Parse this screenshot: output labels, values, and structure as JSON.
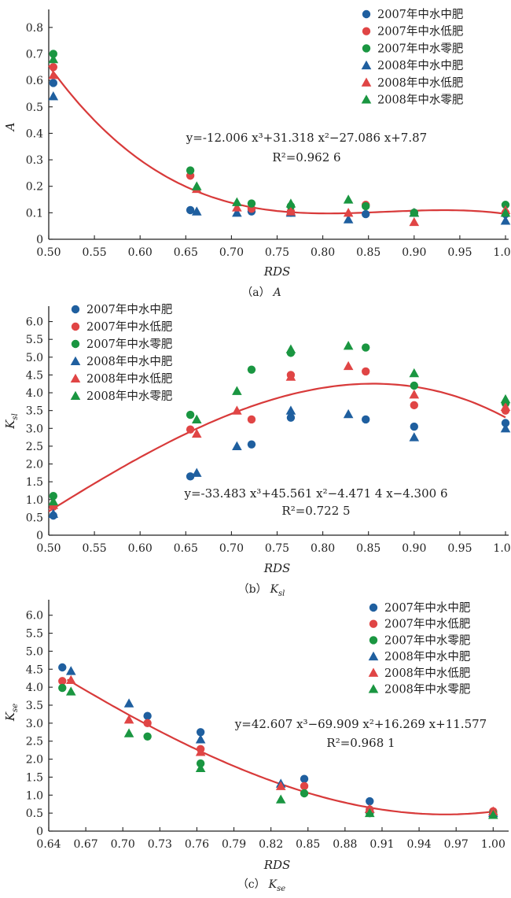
{
  "colors": {
    "blue": "#1f5f9f",
    "red": "#e04545",
    "green": "#1a9641",
    "fit": "#d83a3a"
  },
  "legend": [
    {
      "label": "2007年中水中肥",
      "color": "#1f5f9f",
      "marker": "circle"
    },
    {
      "label": "2007年中水低肥",
      "color": "#e04545",
      "marker": "circle"
    },
    {
      "label": "2007年中水零肥",
      "color": "#1a9641",
      "marker": "circle"
    },
    {
      "label": "2008年中水中肥",
      "color": "#1f5f9f",
      "marker": "triangle"
    },
    {
      "label": "2008年中水低肥",
      "color": "#e04545",
      "marker": "triangle"
    },
    {
      "label": "2008年中水零肥",
      "color": "#1a9641",
      "marker": "triangle"
    }
  ],
  "chart_data": [
    {
      "type": "scatter",
      "panel": "a",
      "caption_prefix": "（a）",
      "caption_var": "A",
      "caption_sub": "",
      "xlabel": "RDS",
      "ylabel_main": "A",
      "ylabel_sub": "",
      "xlim": [
        0.5,
        1.0
      ],
      "ylim": [
        0,
        0.85
      ],
      "xticks": [
        "0.50",
        "0.55",
        "0.60",
        "0.65",
        "0.70",
        "0.75",
        "0.80",
        "0.85",
        "0.90",
        "0.95",
        "1.00"
      ],
      "yticks": [
        "0",
        "0.1",
        "0.2",
        "0.3",
        "0.4",
        "0.5",
        "0.6",
        "0.7",
        "0.8"
      ],
      "grid": false,
      "legend_position": "top-right",
      "equation": "y=-12.006 x³+31.318 x²−27.086 x+7.87",
      "r2": "R²=0.962 6",
      "fit": {
        "coeffs": [
          -12.006,
          31.318,
          -27.086,
          7.87
        ],
        "range": [
          0.5,
          1.0
        ]
      },
      "series": [
        {
          "name": "2007年中水中肥",
          "points": [
            [
              0.505,
              0.59
            ],
            [
              0.655,
              0.11
            ],
            [
              0.722,
              0.105
            ],
            [
              0.765,
              0.1
            ],
            [
              0.847,
              0.095
            ],
            [
              0.9,
              0.1
            ],
            [
              1.0,
              0.095
            ]
          ]
        },
        {
          "name": "2007年中水低肥",
          "points": [
            [
              0.505,
              0.65
            ],
            [
              0.655,
              0.24
            ],
            [
              0.722,
              0.115
            ],
            [
              0.765,
              0.105
            ],
            [
              0.847,
              0.13
            ],
            [
              0.9,
              0.1
            ],
            [
              1.0,
              0.1
            ]
          ]
        },
        {
          "name": "2007年中水零肥",
          "points": [
            [
              0.505,
              0.7
            ],
            [
              0.655,
              0.26
            ],
            [
              0.722,
              0.135
            ],
            [
              0.765,
              0.125
            ],
            [
              0.847,
              0.125
            ],
            [
              0.9,
              0.1
            ],
            [
              1.0,
              0.13
            ]
          ]
        },
        {
          "name": "2008年中水中肥",
          "points": [
            [
              0.505,
              0.54
            ],
            [
              0.662,
              0.105
            ],
            [
              0.706,
              0.1
            ],
            [
              0.765,
              0.1
            ],
            [
              0.828,
              0.075
            ],
            [
              0.9,
              0.1
            ],
            [
              1.0,
              0.07
            ]
          ]
        },
        {
          "name": "2008年中水低肥",
          "points": [
            [
              0.505,
              0.62
            ],
            [
              0.662,
              0.19
            ],
            [
              0.706,
              0.12
            ],
            [
              0.765,
              0.105
            ],
            [
              0.828,
              0.1
            ],
            [
              0.9,
              0.065
            ],
            [
              1.0,
              0.11
            ]
          ]
        },
        {
          "name": "2008年中水零肥",
          "points": [
            [
              0.505,
              0.68
            ],
            [
              0.662,
              0.2
            ],
            [
              0.706,
              0.14
            ],
            [
              0.765,
              0.135
            ],
            [
              0.828,
              0.15
            ],
            [
              0.9,
              0.1
            ],
            [
              1.0,
              0.1
            ]
          ]
        }
      ]
    },
    {
      "type": "scatter",
      "panel": "b",
      "caption_prefix": "（b）",
      "caption_var": "K",
      "caption_sub": "sl",
      "xlabel": "RDS",
      "ylabel_main": "K",
      "ylabel_sub": "sl",
      "xlim": [
        0.5,
        1.0
      ],
      "ylim": [
        0,
        6.3
      ],
      "xticks": [
        "0.50",
        "0.55",
        "0.60",
        "0.65",
        "0.70",
        "0.75",
        "0.80",
        "0.85",
        "0.90",
        "0.95",
        "1.00"
      ],
      "yticks": [
        "0",
        "0.5",
        "1.0",
        "1.5",
        "2.0",
        "2.5",
        "3.0",
        "3.5",
        "4.0",
        "4.5",
        "5.0",
        "5.5",
        "6.0"
      ],
      "grid": false,
      "legend_position": "top-left",
      "equation": "y=-33.483 x³+45.561 x²−4.471 4 x−4.300 6",
      "r2": "R²=0.722 5",
      "fit": {
        "coeffs": [
          -33.483,
          45.561,
          -4.4714,
          -4.3006
        ],
        "range": [
          0.5,
          1.0
        ]
      },
      "series": [
        {
          "name": "2007年中水中肥",
          "points": [
            [
              0.505,
              0.55
            ],
            [
              0.655,
              1.65
            ],
            [
              0.722,
              2.55
            ],
            [
              0.765,
              3.3
            ],
            [
              0.847,
              3.25
            ],
            [
              0.9,
              3.05
            ],
            [
              1.0,
              3.15
            ]
          ]
        },
        {
          "name": "2007年中水低肥",
          "points": [
            [
              0.505,
              0.8
            ],
            [
              0.655,
              2.97
            ],
            [
              0.722,
              3.25
            ],
            [
              0.765,
              4.5
            ],
            [
              0.847,
              4.6
            ],
            [
              0.9,
              3.65
            ],
            [
              1.0,
              3.5
            ]
          ]
        },
        {
          "name": "2007年中水零肥",
          "points": [
            [
              0.505,
              1.1
            ],
            [
              0.655,
              3.38
            ],
            [
              0.722,
              4.65
            ],
            [
              0.765,
              5.12
            ],
            [
              0.847,
              5.27
            ],
            [
              0.9,
              4.2
            ],
            [
              1.0,
              3.7
            ]
          ]
        },
        {
          "name": "2008年中水中肥",
          "points": [
            [
              0.505,
              0.6
            ],
            [
              0.662,
              1.75
            ],
            [
              0.706,
              2.5
            ],
            [
              0.765,
              3.5
            ],
            [
              0.828,
              3.4
            ],
            [
              0.9,
              2.75
            ],
            [
              1.0,
              3.0
            ]
          ]
        },
        {
          "name": "2008年中水低肥",
          "points": [
            [
              0.505,
              0.85
            ],
            [
              0.662,
              2.85
            ],
            [
              0.706,
              3.5
            ],
            [
              0.765,
              4.45
            ],
            [
              0.828,
              4.75
            ],
            [
              0.9,
              3.95
            ],
            [
              1.0,
              3.6
            ]
          ]
        },
        {
          "name": "2008年中水零肥",
          "points": [
            [
              0.505,
              0.95
            ],
            [
              0.662,
              3.25
            ],
            [
              0.706,
              4.05
            ],
            [
              0.765,
              5.22
            ],
            [
              0.828,
              5.32
            ],
            [
              0.9,
              4.55
            ],
            [
              1.0,
              3.82
            ]
          ]
        }
      ]
    },
    {
      "type": "scatter",
      "panel": "c",
      "caption_prefix": "（c）",
      "caption_var": "K",
      "caption_sub": "se",
      "xlabel": "RDS",
      "ylabel_main": "K",
      "ylabel_sub": "se",
      "xlim": [
        0.64,
        1.01
      ],
      "ylim": [
        0,
        6.3
      ],
      "xticks": [
        "0.64",
        "0.67",
        "0.70",
        "0.73",
        "0.76",
        "0.79",
        "0.82",
        "0.85",
        "0.88",
        "0.91",
        "0.94",
        "0.97",
        "1.00"
      ],
      "yticks": [
        "0",
        "0.5",
        "1.0",
        "1.5",
        "2.0",
        "2.5",
        "3.0",
        "3.5",
        "4.0",
        "4.5",
        "5.0",
        "5.5",
        "6.0"
      ],
      "grid": false,
      "legend_position": "top-right",
      "equation": "y=42.607 x³−69.909 x²+16.269 x+11.577",
      "r2": "R²=0.968 1",
      "fit": {
        "coeffs": [
          42.607,
          -69.909,
          16.269,
          11.577
        ],
        "range": [
          0.655,
          1.0
        ]
      },
      "series": [
        {
          "name": "2007年中水中肥",
          "points": [
            [
              0.651,
              4.55
            ],
            [
              0.72,
              3.2
            ],
            [
              0.763,
              2.75
            ],
            [
              0.847,
              1.45
            ],
            [
              0.9,
              0.83
            ],
            [
              1.0,
              0.53
            ]
          ]
        },
        {
          "name": "2007年中水低肥",
          "points": [
            [
              0.651,
              4.17
            ],
            [
              0.72,
              3.0
            ],
            [
              0.763,
              2.28
            ],
            [
              0.847,
              1.25
            ],
            [
              0.9,
              0.6
            ],
            [
              1.0,
              0.55
            ]
          ]
        },
        {
          "name": "2007年中水零肥",
          "points": [
            [
              0.651,
              3.98
            ],
            [
              0.72,
              2.63
            ],
            [
              0.763,
              1.88
            ],
            [
              0.847,
              1.05
            ],
            [
              0.9,
              0.5
            ],
            [
              1.0,
              0.5
            ]
          ]
        },
        {
          "name": "2008年中水中肥",
          "points": [
            [
              0.658,
              4.45
            ],
            [
              0.705,
              3.55
            ],
            [
              0.763,
              2.55
            ],
            [
              0.828,
              1.32
            ],
            [
              0.9,
              0.62
            ],
            [
              1.0,
              0.5
            ]
          ]
        },
        {
          "name": "2008年中水低肥",
          "points": [
            [
              0.658,
              4.2
            ],
            [
              0.705,
              3.1
            ],
            [
              0.763,
              2.2
            ],
            [
              0.828,
              1.25
            ],
            [
              0.9,
              0.62
            ],
            [
              1.0,
              0.55
            ]
          ]
        },
        {
          "name": "2008年中水零肥",
          "points": [
            [
              0.658,
              3.88
            ],
            [
              0.705,
              2.72
            ],
            [
              0.763,
              1.75
            ],
            [
              0.828,
              0.88
            ],
            [
              0.9,
              0.5
            ],
            [
              1.0,
              0.45
            ]
          ]
        }
      ]
    }
  ]
}
